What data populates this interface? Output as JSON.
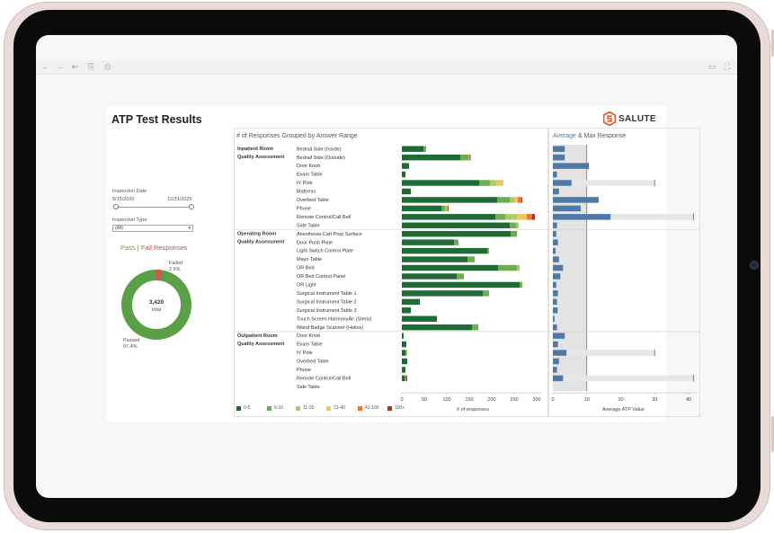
{
  "toolbar": {
    "icons": [
      "back-arrow-icon",
      "forward-arrow-icon",
      "skip-back-icon",
      "copy-icon",
      "share-icon",
      "comment-icon",
      "fullscreen-icon"
    ]
  },
  "dashboard": {
    "title": "ATP Test Results",
    "logo_text": "SALUTE",
    "brand_color": "#e8572a"
  },
  "filters": {
    "inspection_date_label": "Inspection Date",
    "date_start": "5/15/2020",
    "date_end": "12/31/2025",
    "inspection_type_label": "Inspection Type",
    "inspection_type_value": "(All)"
  },
  "donut": {
    "title_pass": "Pass",
    "title_sep": " | ",
    "title_fail": "Fail Responses",
    "total_value": "3,420",
    "total_label": "total",
    "failed_label": "Failed",
    "failed_pct": "2.6%",
    "passed_label": "Passed",
    "passed_pct": "97.4%",
    "failed_fraction": 0.026,
    "pass_color": "#5aa048",
    "fail_color": "#d9534f"
  },
  "responses_chart": {
    "title": "# of Responses Grouped by Answer Range",
    "xlabel": "# of responses",
    "ticks": [
      "0",
      "50",
      "100",
      "150",
      "200",
      "250",
      "300"
    ]
  },
  "avg_chart": {
    "title_avg": "Average",
    "title_sep": " & ",
    "title_max": "Max Response",
    "xlabel": "Average ATP Value",
    "ticks": [
      "0",
      "10",
      "20",
      "30",
      "40"
    ]
  },
  "legend": [
    {
      "label": "0-5",
      "color": "#1e6b35"
    },
    {
      "label": "6-10",
      "color": "#6fae4f"
    },
    {
      "label": "11-20",
      "color": "#a9cc6e"
    },
    {
      "label": "21-40",
      "color": "#f0c75e"
    },
    {
      "label": "41-100",
      "color": "#e8792f"
    },
    {
      "label": "100+",
      "color": "#a4372a"
    }
  ],
  "chart_data": {
    "type": "bar",
    "stacked_series": [
      "0-5",
      "6-10",
      "11-20",
      "21-40",
      "41-100",
      "100+"
    ],
    "groups": [
      {
        "name": "Inpatient Room Quality Assessment",
        "items": [
          {
            "label": "Bedrail Side (Inside)",
            "values": [
              48,
              6,
              0,
              0,
              0,
              0
            ],
            "avg": 3.5,
            "max": 0
          },
          {
            "label": "Bedrail Side (Outside)",
            "values": [
              130,
              18,
              3,
              0,
              0,
              2
            ],
            "avg": 3.5,
            "max": 0
          },
          {
            "label": "Door Knob",
            "values": [
              16,
              0,
              0,
              0,
              0,
              0
            ],
            "avg": 10.5,
            "max": 10.5
          },
          {
            "label": "Exam Table",
            "values": [
              8,
              0,
              0,
              0,
              0,
              0
            ],
            "avg": 1.2,
            "max": 0
          },
          {
            "label": "IV Pole",
            "values": [
              172,
              24,
              14,
              16,
              0,
              0
            ],
            "avg": 5.5,
            "max": 30
          },
          {
            "label": "Mattress",
            "values": [
              20,
              0,
              0,
              0,
              0,
              0
            ],
            "avg": 1.8,
            "max": 0
          },
          {
            "label": "Overbed Table",
            "values": [
              212,
              28,
              10,
              8,
              8,
              2
            ],
            "avg": 13.5,
            "max": 0
          },
          {
            "label": "Phone",
            "values": [
              88,
              8,
              6,
              0,
              0,
              2
            ],
            "avg": 8.2,
            "max": 0
          },
          {
            "label": "Remote Control/Call Bell",
            "values": [
              208,
              22,
              26,
              22,
              12,
              6
            ],
            "avg": 17,
            "max": 41.5
          },
          {
            "label": "Side Table",
            "values": [
              240,
              14,
              6,
              0,
              0,
              0
            ],
            "avg": 1.2,
            "max": 0
          }
        ]
      },
      {
        "name": "Operating Room Quality Assessment",
        "items": [
          {
            "label": "Anesthesia Cart Prep Surface",
            "values": [
              242,
              14,
              0,
              0,
              0,
              0
            ],
            "avg": 1.0,
            "max": 0
          },
          {
            "label": "Door Push Plate",
            "values": [
              116,
              10,
              0,
              0,
              0,
              0
            ],
            "avg": 1.5,
            "max": 0
          },
          {
            "label": "Light Switch Control Plate",
            "values": [
              190,
              4,
              0,
              0,
              0,
              0
            ],
            "avg": 0.8,
            "max": 0
          },
          {
            "label": "Mayo Table",
            "values": [
              146,
              16,
              0,
              0,
              0,
              0
            ],
            "avg": 1.8,
            "max": 0
          },
          {
            "label": "OR Bed",
            "values": [
              214,
              42,
              6,
              0,
              0,
              0
            ],
            "avg": 3.0,
            "max": 0
          },
          {
            "label": "OR Bed Control Panel",
            "values": [
              122,
              16,
              0,
              0,
              0,
              0
            ],
            "avg": 2.2,
            "max": 0
          },
          {
            "label": "OR Light",
            "values": [
              262,
              6,
              0,
              0,
              0,
              0
            ],
            "avg": 1.0,
            "max": 0
          },
          {
            "label": "Surgical Instrument Table 1",
            "values": [
              180,
              14,
              0,
              0,
              0,
              0
            ],
            "avg": 1.5,
            "max": 0
          },
          {
            "label": "Surgical Instrument Table 2",
            "values": [
              40,
              0,
              0,
              0,
              0,
              0
            ],
            "avg": 1.2,
            "max": 0
          },
          {
            "label": "Surgical Instrument Table 3",
            "values": [
              20,
              0,
              0,
              0,
              0,
              0
            ],
            "avg": 1.4,
            "max": 0
          },
          {
            "label": "Touch Screen HarmonyAir (Steris)",
            "values": [
              78,
              0,
              0,
              0,
              0,
              0
            ],
            "avg": 0.5,
            "max": 0
          },
          {
            "label": "Wand Badge Scanner (Helios)",
            "values": [
              156,
              14,
              0,
              0,
              0,
              0
            ],
            "avg": 1.2,
            "max": 0
          }
        ]
      },
      {
        "name": "Outpatient Room Quality Assessment",
        "items": [
          {
            "label": "Door Knob",
            "values": [
              4,
              0,
              0,
              0,
              0,
              0
            ],
            "avg": 3.5,
            "max": 0
          },
          {
            "label": "Exam Table",
            "values": [
              10,
              0,
              0,
              0,
              0,
              0
            ],
            "avg": 1.5,
            "max": 0
          },
          {
            "label": "IV Pole",
            "values": [
              8,
              2,
              2,
              0,
              0,
              0
            ],
            "avg": 4.0,
            "max": 30
          },
          {
            "label": "Overbed Table",
            "values": [
              12,
              0,
              0,
              0,
              0,
              0
            ],
            "avg": 1.8,
            "max": 0
          },
          {
            "label": "Phone",
            "values": [
              8,
              0,
              0,
              0,
              0,
              0
            ],
            "avg": 1.2,
            "max": 0
          },
          {
            "label": "Remote Control/Call Bell",
            "values": [
              6,
              4,
              0,
              0,
              0,
              2
            ],
            "avg": 3.0,
            "max": 41.5
          },
          {
            "label": "Side Table",
            "values": [
              0,
              0,
              0,
              0,
              0,
              0
            ],
            "avg": 0,
            "max": 0
          }
        ]
      }
    ],
    "responses_xlim": [
      0,
      310
    ],
    "avg_xlim": [
      0,
      42
    ],
    "pass_threshold": 10
  }
}
